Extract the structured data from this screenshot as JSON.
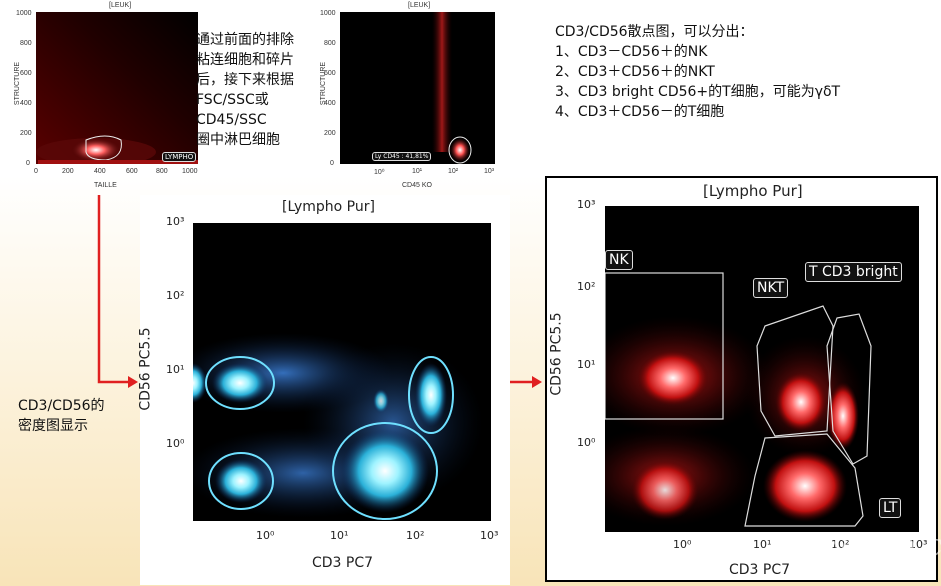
{
  "top_left_plot": {
    "title": "[LEUK]",
    "ylabel": "STRUCTURE",
    "xlabel": "TAILLE",
    "yticks": [
      "1000",
      "800",
      "600",
      "400",
      "200",
      "0"
    ],
    "xticks": [
      "0",
      "200",
      "400",
      "600",
      "800",
      "1000"
    ],
    "gate_label": "LYMPHO"
  },
  "top_mid_plot": {
    "title": "[LEUK]",
    "ylabel": "STRUCTURE",
    "xlabel": "CD45 KO",
    "yticks": [
      "1000",
      "800",
      "600",
      "400",
      "200",
      "0"
    ],
    "xticks": [
      "10⁰",
      "10¹",
      "10²",
      "10³"
    ],
    "gate_label": "Ly CD45 : 41,81%"
  },
  "desc_left": [
    "通过前面的排除",
    "粘连细胞和碎片",
    "后，接下来根据",
    "FSC/SSC或",
    "CD45/SSC",
    "圈中淋巴细胞"
  ],
  "desc_right": [
    "CD3/CD56散点图，可以分出：",
    "1、CD3－CD56＋的NK",
    "2、CD3＋CD56＋的NKT",
    "3、CD3 bright CD56+的T细胞，可能为γδT",
    "4、CD3＋CD56－的T细胞"
  ],
  "density_caption": [
    "CD3/CD56的",
    "密度图显示"
  ],
  "density_plot": {
    "title": "[Lympho Pur]",
    "xlabel": "CD3 PC7",
    "ylabel": "CD56 PC5.5",
    "xticks": [
      "10⁰",
      "10¹",
      "10²",
      "10³"
    ],
    "yticks": [
      "10³",
      "10²",
      "10¹",
      "10⁰"
    ]
  },
  "dot_plot": {
    "title": "[Lympho Pur]",
    "xlabel": "CD3 PC7",
    "ylabel": "CD56 PC5.5",
    "xticks": [
      "10⁰",
      "10¹",
      "10²",
      "10³"
    ],
    "yticks": [
      "10³",
      "10²",
      "10¹",
      "10⁰"
    ],
    "gates": [
      "NK",
      "NKT",
      "T CD3 bright",
      "LT"
    ]
  },
  "watermark": "Flowcyto.cn",
  "colors": {
    "arrow": "#e02020",
    "dot": "#ff2a2a",
    "density_low": "#1a4f9c",
    "density_high": "#9ff3ff"
  },
  "chart_data": [
    {
      "type": "scatter",
      "title": "[Lympho Pur]",
      "xlabel": "CD3 PC7",
      "ylabel": "CD56 PC5.5",
      "log_scale": true,
      "xlim": [
        0.1,
        1000
      ],
      "ylim": [
        0.1,
        1000
      ],
      "populations": [
        {
          "name": "NK",
          "x": 0.6,
          "y": 8
        },
        {
          "name": "NKT",
          "x": 25,
          "y": 10
        },
        {
          "name": "T CD3 bright",
          "x": 110,
          "y": 6
        },
        {
          "name": "LT",
          "x": 30,
          "y": 0.5
        },
        {
          "name": "",
          "x": 0.6,
          "y": 0.4
        }
      ]
    },
    {
      "type": "heatmap",
      "title": "[Lympho Pur]",
      "xlabel": "CD3 PC7",
      "ylabel": "CD56 PC5.5",
      "log_scale": true,
      "xlim": [
        0.1,
        1000
      ],
      "ylim": [
        0.1,
        1000
      ],
      "populations": [
        {
          "x": 0.5,
          "y": 7
        },
        {
          "x": 0.5,
          "y": 0.4
        },
        {
          "x": 30,
          "y": 0.4
        },
        {
          "x": 110,
          "y": 4
        },
        {
          "x": 12,
          "y": 4
        }
      ]
    }
  ]
}
